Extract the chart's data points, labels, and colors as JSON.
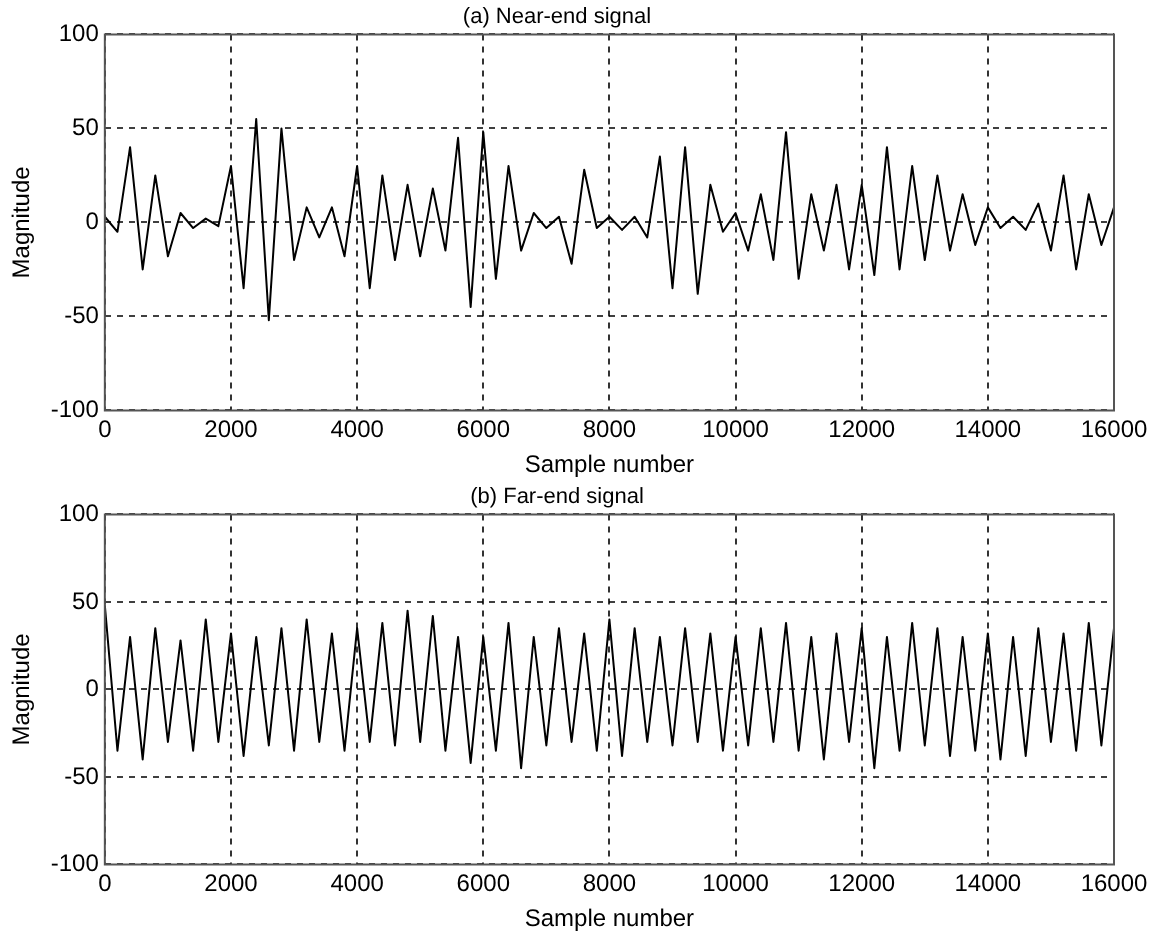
{
  "chart_data": [
    {
      "type": "line",
      "title": "(a) Near-end signal",
      "xlabel": "Sample number",
      "ylabel": "Magnitude",
      "x": [
        0,
        200,
        400,
        600,
        800,
        1000,
        1200,
        1400,
        1600,
        1800,
        2000,
        2200,
        2400,
        2600,
        2800,
        3000,
        3200,
        3400,
        3600,
        3800,
        4000,
        4200,
        4400,
        4600,
        4800,
        5000,
        5200,
        5400,
        5600,
        5800,
        6000,
        6200,
        6400,
        6600,
        6800,
        7000,
        7200,
        7400,
        7600,
        7800,
        8000,
        8200,
        8400,
        8600,
        8800,
        9000,
        9200,
        9400,
        9600,
        9800,
        10000,
        10200,
        10400,
        10600,
        10800,
        11000,
        11200,
        11400,
        11600,
        11800,
        12000,
        12200,
        12400,
        12600,
        12800,
        13000,
        13200,
        13400,
        13600,
        13800,
        14000,
        14200,
        14400,
        14600,
        14800,
        15000,
        15200,
        15400,
        15600,
        15800,
        16000
      ],
      "series": [
        {
          "color": "#000000",
          "values": [
            3,
            -5,
            40,
            -25,
            25,
            -18,
            5,
            -3,
            2,
            -2,
            30,
            -35,
            55,
            -52,
            50,
            -20,
            8,
            -8,
            8,
            -18,
            30,
            -35,
            25,
            -20,
            20,
            -18,
            18,
            -15,
            45,
            -45,
            48,
            -30,
            30,
            -15,
            5,
            -3,
            3,
            -22,
            28,
            -3,
            3,
            -4,
            3,
            -8,
            35,
            -35,
            40,
            -38,
            20,
            -5,
            5,
            -15,
            15,
            -20,
            48,
            -30,
            15,
            -15,
            20,
            -25,
            20,
            -28,
            40,
            -25,
            30,
            -20,
            25,
            -15,
            15,
            -12,
            8,
            -3,
            3,
            -4,
            10,
            -15,
            25,
            -25,
            15,
            -12,
            8
          ]
        }
      ],
      "xlim": [
        0,
        16000
      ],
      "xticks": [
        0,
        2000,
        4000,
        6000,
        8000,
        10000,
        12000,
        14000,
        16000
      ],
      "ylim": [
        -100,
        100
      ],
      "yticks": [
        -100,
        -50,
        0,
        50,
        100
      ],
      "grid": true,
      "marker": "none",
      "legend": false
    },
    {
      "type": "line",
      "title": "(b) Far-end signal",
      "xlabel": "Sample number",
      "ylabel": "Magnitude",
      "x": [
        0,
        200,
        400,
        600,
        800,
        1000,
        1200,
        1400,
        1600,
        1800,
        2000,
        2200,
        2400,
        2600,
        2800,
        3000,
        3200,
        3400,
        3600,
        3800,
        4000,
        4200,
        4400,
        4600,
        4800,
        5000,
        5200,
        5400,
        5600,
        5800,
        6000,
        6200,
        6400,
        6600,
        6800,
        7000,
        7200,
        7400,
        7600,
        7800,
        8000,
        8200,
        8400,
        8600,
        8800,
        9000,
        9200,
        9400,
        9600,
        9800,
        10000,
        10200,
        10400,
        10600,
        10800,
        11000,
        11200,
        11400,
        11600,
        11800,
        12000,
        12200,
        12400,
        12600,
        12800,
        13000,
        13200,
        13400,
        13600,
        13800,
        14000,
        14200,
        14400,
        14600,
        14800,
        15000,
        15200,
        15400,
        15600,
        15800,
        16000
      ],
      "series": [
        {
          "color": "#000000",
          "values": [
            48,
            -35,
            30,
            -40,
            35,
            -30,
            28,
            -35,
            40,
            -30,
            32,
            -38,
            30,
            -32,
            35,
            -35,
            40,
            -30,
            32,
            -35,
            35,
            -30,
            38,
            -32,
            45,
            -30,
            42,
            -35,
            30,
            -42,
            30,
            -35,
            38,
            -45,
            30,
            -32,
            35,
            -30,
            32,
            -35,
            40,
            -38,
            35,
            -30,
            30,
            -32,
            35,
            -30,
            32,
            -35,
            30,
            -32,
            35,
            -30,
            38,
            -35,
            30,
            -40,
            32,
            -30,
            35,
            -45,
            30,
            -35,
            38,
            -32,
            35,
            -38,
            30,
            -35,
            32,
            -40,
            30,
            -38,
            35,
            -30,
            32,
            -35,
            38,
            -32,
            35
          ]
        }
      ],
      "xlim": [
        0,
        16000
      ],
      "xticks": [
        0,
        2000,
        4000,
        6000,
        8000,
        10000,
        12000,
        14000,
        16000
      ],
      "ylim": [
        -100,
        100
      ],
      "yticks": [
        -100,
        -50,
        0,
        50,
        100
      ],
      "grid": true,
      "marker": "none",
      "legend": false
    }
  ]
}
